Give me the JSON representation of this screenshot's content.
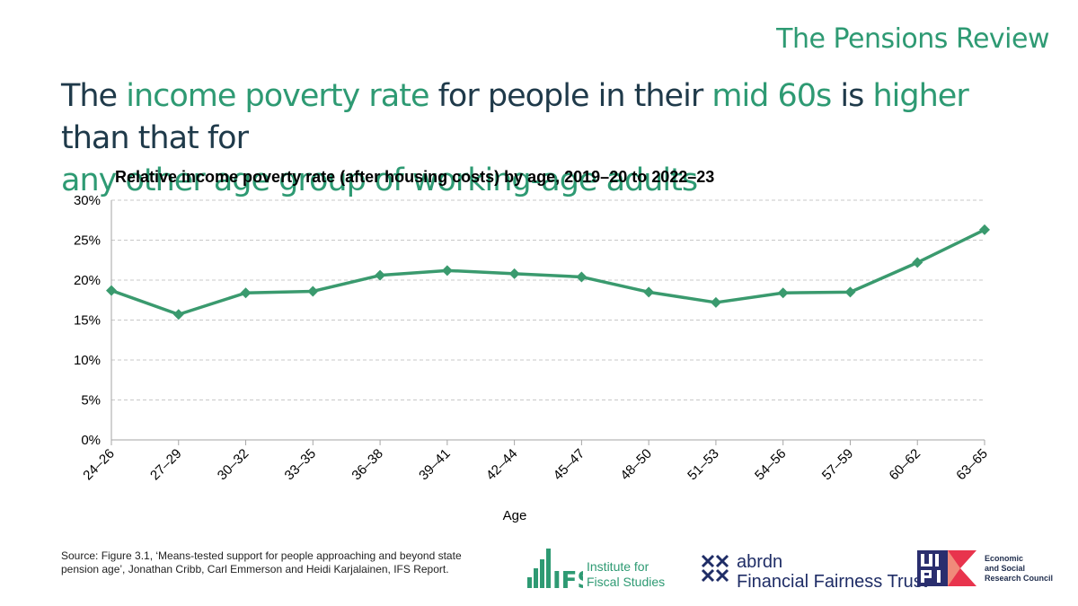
{
  "brand": "The Pensions Review",
  "headline": [
    {
      "text": "The ",
      "hl": false
    },
    {
      "text": "income poverty rate",
      "hl": true
    },
    {
      "text": " for people in their ",
      "hl": false
    },
    {
      "text": "mid 60s",
      "hl": true
    },
    {
      "text": " is ",
      "hl": false
    },
    {
      "text": "higher",
      "hl": true
    },
    {
      "text": " than that for ",
      "hl": false
    },
    {
      "text": "any other age group of working-age adults",
      "hl": true
    }
  ],
  "source": "Source: Figure 3.1, ‘Means-tested support for people approaching and beyond state pension age’, Jonathan Cribb, Carl Emmerson and Heidi Karjalainen, IFS Report.",
  "logos": {
    "ifs": {
      "mark": "IFS",
      "line1": "Institute for",
      "line2": "Fiscal Studies"
    },
    "abrdn": {
      "line1": "abrdn",
      "line2": "Financial Fairness Trust"
    },
    "ukri": {
      "line1": "Economic",
      "line2": "and Social",
      "line3": "Research Council"
    }
  },
  "colors": {
    "accent": "#2e9a73",
    "headline": "#1f3a4a",
    "line": "#3a9a6e"
  },
  "chart_data": {
    "type": "line",
    "title": "Relative income poverty rate (after housing costs) by age, 2019–20 to 2022–23",
    "xlabel": "Age",
    "ylabel": "",
    "categories": [
      "24–26",
      "27–29",
      "30–32",
      "33–35",
      "36–38",
      "39–41",
      "42–44",
      "45–47",
      "48–50",
      "51–53",
      "54–56",
      "57–59",
      "60–62",
      "63–65"
    ],
    "series": [
      {
        "values": [
          18.7,
          15.7,
          18.4,
          18.6,
          20.6,
          21.2,
          20.8,
          20.4,
          18.5,
          17.2,
          18.4,
          18.5,
          22.2,
          26.3
        ]
      }
    ],
    "ylim": [
      0,
      30
    ],
    "yticks": [
      "0%",
      "5%",
      "10%",
      "15%",
      "20%",
      "25%",
      "30%"
    ],
    "grid": true,
    "marker": "diamond"
  }
}
